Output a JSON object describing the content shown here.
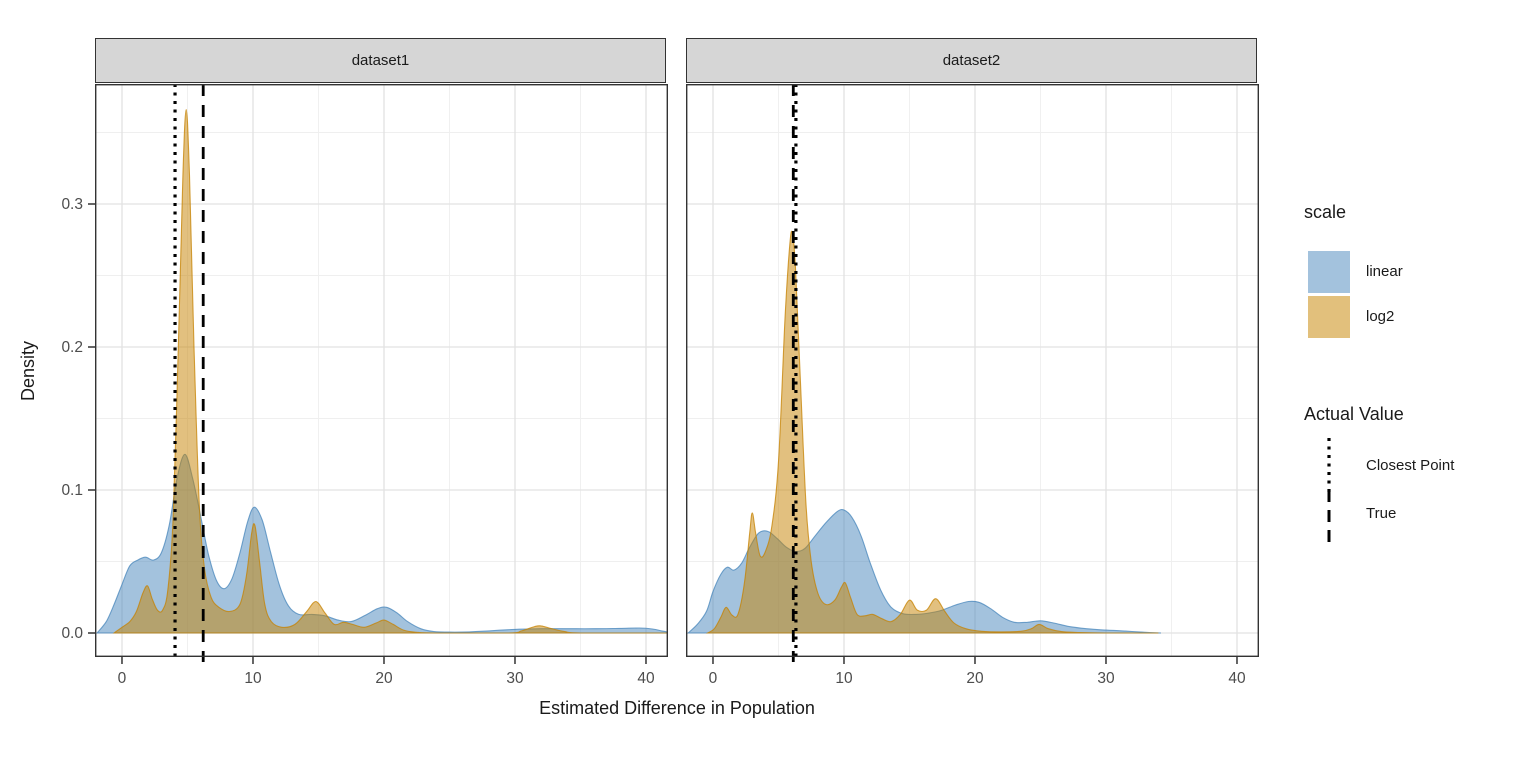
{
  "ui": {
    "x_axis_title": "Estimated Difference in Population",
    "y_axis_title": "Density",
    "facets": [
      "dataset1",
      "dataset2"
    ],
    "legend": {
      "scale_title": "scale",
      "scale_items": [
        {
          "label": "linear",
          "swatch": "#a3c2dd"
        },
        {
          "label": "log2",
          "swatch": "#e2c07c"
        }
      ],
      "value_title": "Actual Value",
      "value_items": [
        {
          "label": "Closest Point",
          "pattern": "dotted"
        },
        {
          "label": "True",
          "pattern": "dashed"
        }
      ]
    },
    "colors": {
      "linear_fill": "rgba(71,133,187,0.5)",
      "log2_fill": "rgba(197,129,0,0.5)",
      "linear_stroke": "rgba(71,133,187,0.75)",
      "log2_stroke": "rgba(197,129,0,0.75)",
      "grid_major": "#e2e2e2",
      "grid_minor": "#efefef",
      "panel_border": "#333333",
      "tick": "#333333",
      "tick_text": "#4d4d4d",
      "vline": "#000000"
    }
  },
  "chart_data": {
    "type": "area",
    "title": "",
    "xlabel": "Estimated Difference in Population",
    "ylabel": "Density",
    "legend_position": "right",
    "grid": "on",
    "xlim": [
      -2.06,
      41.68
    ],
    "ylim": [
      -0.017,
      0.384
    ],
    "x_ticks": [
      0,
      10,
      20,
      30,
      40
    ],
    "x_tick_labels": [
      "0",
      "10",
      "20",
      "30",
      "40"
    ],
    "y_ticks": [
      0,
      0.1,
      0.2,
      0.3
    ],
    "y_tick_labels": [
      "0.0",
      "0.1",
      "0.2",
      "0.3"
    ],
    "x_minor": [
      5,
      15,
      25,
      35
    ],
    "y_minor": [
      0.05,
      0.15,
      0.25,
      0.35
    ],
    "panels": [
      {
        "facet": "dataset1",
        "vlines": [
          {
            "name": "Closest Point",
            "x": 4.05,
            "dash": "dotted"
          },
          {
            "name": "True",
            "x": 6.2,
            "dash": "dashed"
          }
        ],
        "series": [
          {
            "name": "linear",
            "points": [
              [
                -1.9,
                0
              ],
              [
                -1.2,
                0.008
              ],
              [
                -0.6,
                0.02
              ],
              [
                0,
                0.034
              ],
              [
                0.6,
                0.047
              ],
              [
                1.2,
                0.051
              ],
              [
                1.8,
                0.053
              ],
              [
                2.4,
                0.051
              ],
              [
                3.0,
                0.056
              ],
              [
                3.6,
                0.075
              ],
              [
                4.2,
                0.108
              ],
              [
                4.8,
                0.125
              ],
              [
                5.4,
                0.108
              ],
              [
                6.0,
                0.082
              ],
              [
                6.6,
                0.055
              ],
              [
                7.2,
                0.037
              ],
              [
                7.8,
                0.031
              ],
              [
                8.4,
                0.038
              ],
              [
                9.0,
                0.056
              ],
              [
                9.6,
                0.078
              ],
              [
                10.1,
                0.088
              ],
              [
                10.7,
                0.079
              ],
              [
                11.3,
                0.058
              ],
              [
                12.0,
                0.034
              ],
              [
                12.7,
                0.019
              ],
              [
                13.5,
                0.013
              ],
              [
                14.5,
                0.013
              ],
              [
                15.5,
                0.012
              ],
              [
                16.5,
                0.009
              ],
              [
                17.5,
                0.008
              ],
              [
                18.5,
                0.012
              ],
              [
                19.5,
                0.017
              ],
              [
                20.2,
                0.018
              ],
              [
                21.0,
                0.014
              ],
              [
                21.8,
                0.008
              ],
              [
                22.8,
                0.003
              ],
              [
                23.8,
                0.001
              ],
              [
                25,
                0.0006
              ],
              [
                26.5,
                0.0008
              ],
              [
                28,
                0.0015
              ],
              [
                30,
                0.0025
              ],
              [
                32,
                0.003
              ],
              [
                34,
                0.003
              ],
              [
                36,
                0.003
              ],
              [
                38,
                0.0032
              ],
              [
                39.5,
                0.0035
              ],
              [
                40.5,
                0.0028
              ],
              [
                41.2,
                0.0015
              ],
              [
                41.6,
                0.0008
              ]
            ]
          },
          {
            "name": "log2",
            "points": [
              [
                -0.6,
                0
              ],
              [
                0,
                0.004
              ],
              [
                0.6,
                0.008
              ],
              [
                1.1,
                0.015
              ],
              [
                1.6,
                0.028
              ],
              [
                1.95,
                0.033
              ],
              [
                2.3,
                0.024
              ],
              [
                2.7,
                0.016
              ],
              [
                3.1,
                0.016
              ],
              [
                3.5,
                0.03
              ],
              [
                3.9,
                0.08
              ],
              [
                4.3,
                0.2
              ],
              [
                4.65,
                0.32
              ],
              [
                4.9,
                0.366
              ],
              [
                5.15,
                0.32
              ],
              [
                5.5,
                0.2
              ],
              [
                5.9,
                0.09
              ],
              [
                6.3,
                0.045
              ],
              [
                6.8,
                0.025
              ],
              [
                7.4,
                0.018
              ],
              [
                8.2,
                0.015
              ],
              [
                9.0,
                0.02
              ],
              [
                9.5,
                0.04
              ],
              [
                9.9,
                0.07
              ],
              [
                10.15,
                0.075
              ],
              [
                10.5,
                0.05
              ],
              [
                10.9,
                0.02
              ],
              [
                11.4,
                0.008
              ],
              [
                12.2,
                0.004
              ],
              [
                13.2,
                0.006
              ],
              [
                14.1,
                0.015
              ],
              [
                14.8,
                0.022
              ],
              [
                15.5,
                0.014
              ],
              [
                16.2,
                0.006
              ],
              [
                16.9,
                0.0075
              ],
              [
                17.6,
                0.006
              ],
              [
                18.5,
                0.004
              ],
              [
                19.4,
                0.007
              ],
              [
                20.0,
                0.009
              ],
              [
                20.7,
                0.006
              ],
              [
                21.5,
                0.002
              ],
              [
                22.5,
                0.0005
              ],
              [
                24,
                0
              ],
              [
                29.5,
                0
              ],
              [
                30.5,
                0.0015
              ],
              [
                31.5,
                0.0045
              ],
              [
                32.0,
                0.005
              ],
              [
                32.8,
                0.003
              ],
              [
                33.8,
                0.001
              ],
              [
                35,
                0
              ],
              [
                41.6,
                0
              ]
            ]
          }
        ]
      },
      {
        "facet": "dataset2",
        "vlines": [
          {
            "name": "True",
            "x": 6.13,
            "dash": "dashed"
          },
          {
            "name": "Closest Point",
            "x": 6.33,
            "dash": "dotted"
          }
        ],
        "series": [
          {
            "name": "linear",
            "points": [
              [
                -1.9,
                0
              ],
              [
                -1.2,
                0.006
              ],
              [
                -0.5,
                0.015
              ],
              [
                0,
                0.029
              ],
              [
                0.6,
                0.041
              ],
              [
                1.1,
                0.046
              ],
              [
                1.6,
                0.044
              ],
              [
                2.2,
                0.049
              ],
              [
                2.8,
                0.06
              ],
              [
                3.5,
                0.07
              ],
              [
                4.2,
                0.071
              ],
              [
                4.9,
                0.066
              ],
              [
                5.6,
                0.06
              ],
              [
                6.3,
                0.057
              ],
              [
                7.0,
                0.059
              ],
              [
                7.8,
                0.068
              ],
              [
                8.7,
                0.078
              ],
              [
                9.5,
                0.085
              ],
              [
                10.0,
                0.086
              ],
              [
                10.6,
                0.081
              ],
              [
                11.3,
                0.068
              ],
              [
                12.0,
                0.049
              ],
              [
                12.8,
                0.03
              ],
              [
                13.6,
                0.018
              ],
              [
                14.5,
                0.0135
              ],
              [
                15.5,
                0.013
              ],
              [
                16.5,
                0.014
              ],
              [
                17.5,
                0.016
              ],
              [
                18.5,
                0.0195
              ],
              [
                19.5,
                0.022
              ],
              [
                20.3,
                0.0215
              ],
              [
                21.2,
                0.017
              ],
              [
                22.1,
                0.011
              ],
              [
                23.0,
                0.0075
              ],
              [
                24.0,
                0.0075
              ],
              [
                25.0,
                0.0085
              ],
              [
                26.0,
                0.007
              ],
              [
                27.2,
                0.0045
              ],
              [
                28.5,
                0.003
              ],
              [
                30,
                0.002
              ],
              [
                31.5,
                0.0013
              ],
              [
                33,
                0.0005
              ],
              [
                34.2,
                0
              ]
            ]
          },
          {
            "name": "log2",
            "points": [
              [
                -0.4,
                0
              ],
              [
                0.1,
                0.003
              ],
              [
                0.6,
                0.011
              ],
              [
                1.0,
                0.018
              ],
              [
                1.45,
                0.0125
              ],
              [
                1.9,
                0.013
              ],
              [
                2.4,
                0.035
              ],
              [
                2.8,
                0.07
              ],
              [
                3.0,
                0.084
              ],
              [
                3.25,
                0.07
              ],
              [
                3.6,
                0.054
              ],
              [
                4.0,
                0.057
              ],
              [
                4.5,
                0.075
              ],
              [
                5.0,
                0.12
              ],
              [
                5.5,
                0.22
              ],
              [
                5.85,
                0.27
              ],
              [
                6.05,
                0.28
              ],
              [
                6.3,
                0.255
              ],
              [
                6.7,
                0.17
              ],
              [
                7.1,
                0.09
              ],
              [
                7.5,
                0.05
              ],
              [
                8.0,
                0.028
              ],
              [
                8.6,
                0.02
              ],
              [
                9.3,
                0.023
              ],
              [
                9.8,
                0.032
              ],
              [
                10.1,
                0.035
              ],
              [
                10.5,
                0.025
              ],
              [
                11.0,
                0.013
              ],
              [
                11.6,
                0.012
              ],
              [
                12.2,
                0.013
              ],
              [
                12.9,
                0.01
              ],
              [
                13.6,
                0.008
              ],
              [
                14.3,
                0.013
              ],
              [
                15.0,
                0.023
              ],
              [
                15.6,
                0.016
              ],
              [
                16.3,
                0.016
              ],
              [
                17.0,
                0.024
              ],
              [
                17.7,
                0.015
              ],
              [
                18.4,
                0.007
              ],
              [
                19.3,
                0.003
              ],
              [
                20.5,
                0.0012
              ],
              [
                22,
                0.0008
              ],
              [
                23.5,
                0.0012
              ],
              [
                24.3,
                0.003
              ],
              [
                24.9,
                0.006
              ],
              [
                25.6,
                0.003
              ],
              [
                26.6,
                0.001
              ],
              [
                28,
                0.0003
              ],
              [
                30,
                0
              ],
              [
                34,
                0
              ]
            ]
          }
        ]
      }
    ]
  }
}
